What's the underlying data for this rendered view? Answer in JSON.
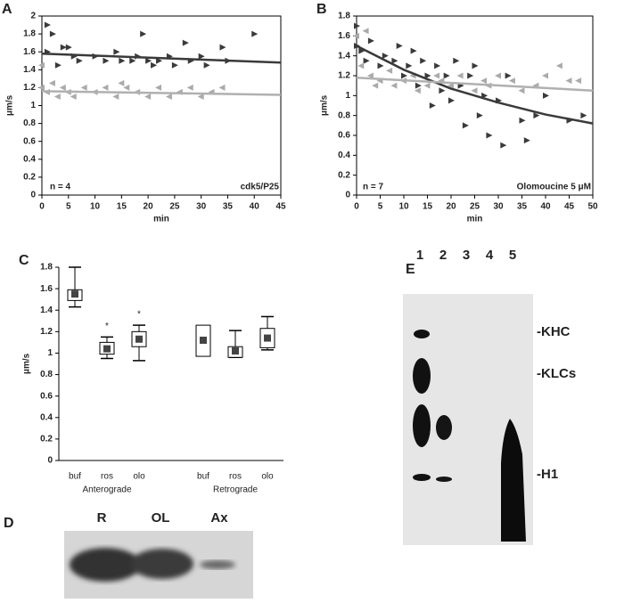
{
  "chart_data": [
    {
      "type": "scatter",
      "label": "A",
      "xlabel": "min",
      "ylabel": "μm/s",
      "annotations": [
        "n = 4",
        "cdk5/P25"
      ],
      "xlim": [
        0,
        45
      ],
      "xticks": [
        0,
        5,
        10,
        15,
        20,
        25,
        30,
        35,
        40,
        45
      ],
      "ylim": [
        0,
        2
      ],
      "yticks": [
        0,
        0.2,
        0.4,
        0.6,
        0.8,
        1,
        1.2,
        1.4,
        1.6,
        1.8,
        2
      ],
      "series": [
        {
          "color": "#3a3a3a",
          "marker": "right",
          "x": [
            1,
            1,
            2,
            3,
            4,
            5,
            6,
            7,
            10,
            12,
            14,
            15,
            17,
            18,
            19,
            20,
            21,
            22,
            24,
            25,
            27,
            28,
            30,
            31,
            34,
            35,
            40
          ],
          "values": [
            1.9,
            1.6,
            1.8,
            1.45,
            1.65,
            1.65,
            1.55,
            1.5,
            1.55,
            1.5,
            1.6,
            1.5,
            1.5,
            1.55,
            1.8,
            1.5,
            1.45,
            1.5,
            1.55,
            1.45,
            1.7,
            1.5,
            1.55,
            1.45,
            1.65,
            1.5,
            1.8
          ]
        },
        {
          "color": "#aaaaaa",
          "marker": "left",
          "x": [
            0,
            0,
            1,
            2,
            3,
            4,
            5,
            6,
            8,
            10,
            12,
            14,
            15,
            16,
            18,
            20,
            22,
            24,
            26,
            28,
            30,
            32,
            34
          ],
          "values": [
            1.45,
            1.2,
            1.15,
            1.25,
            1.1,
            1.2,
            1.15,
            1.1,
            1.2,
            1.15,
            1.2,
            1.1,
            1.25,
            1.2,
            1.15,
            1.1,
            1.2,
            1.1,
            1.15,
            1.2,
            1.1,
            1.15,
            1.2
          ]
        }
      ],
      "fits": [
        {
          "color": "#3a3a3a",
          "x": [
            0,
            45
          ],
          "values": [
            1.58,
            1.48
          ]
        },
        {
          "color": "#b0b0b0",
          "x": [
            0,
            45
          ],
          "values": [
            1.16,
            1.12
          ]
        }
      ]
    },
    {
      "type": "scatter",
      "label": "B",
      "xlabel": "min",
      "ylabel": "μm/s",
      "annotations": [
        "n = 7",
        "Olomoucine 5 μM"
      ],
      "xlim": [
        0,
        50
      ],
      "xticks": [
        0,
        5,
        10,
        15,
        20,
        25,
        30,
        35,
        40,
        45,
        50
      ],
      "ylim": [
        0,
        1.8
      ],
      "yticks": [
        0,
        0.2,
        0.4,
        0.6,
        0.8,
        1,
        1.2,
        1.4,
        1.6,
        1.8
      ],
      "series": [
        {
          "color": "#3a3a3a",
          "marker": "right",
          "x": [
            0,
            0,
            1,
            2,
            3,
            5,
            6,
            8,
            9,
            10,
            11,
            12,
            13,
            14,
            15,
            16,
            17,
            18,
            19,
            20,
            21,
            22,
            23,
            24,
            25,
            26,
            27,
            28,
            30,
            31,
            32,
            35,
            36,
            38,
            40,
            45,
            48
          ],
          "values": [
            1.7,
            1.5,
            1.45,
            1.35,
            1.55,
            1.3,
            1.4,
            1.35,
            1.5,
            1.2,
            1.3,
            1.45,
            1.1,
            1.35,
            1.2,
            0.9,
            1.3,
            1.05,
            1.2,
            0.95,
            1.35,
            1.1,
            0.7,
            1.2,
            1.3,
            0.8,
            1,
            0.6,
            0.95,
            0.5,
            1.2,
            0.75,
            0.55,
            0.8,
            1,
            0.75,
            0.8
          ]
        },
        {
          "color": "#aaaaaa",
          "marker": "left",
          "x": [
            0,
            1,
            2,
            3,
            4,
            5,
            7,
            8,
            10,
            12,
            13,
            15,
            17,
            18,
            20,
            22,
            25,
            27,
            28,
            30,
            33,
            35,
            38,
            40,
            43,
            45,
            47
          ],
          "values": [
            1.6,
            1.3,
            1.65,
            1.2,
            1.1,
            1.15,
            1.25,
            1.1,
            1.15,
            1.2,
            1.05,
            1.1,
            1.2,
            1.15,
            1.1,
            1.2,
            1.05,
            1.15,
            1.1,
            1.2,
            1.15,
            1.05,
            1.1,
            1.2,
            1.3,
            1.15,
            1.15
          ]
        }
      ],
      "fits": [
        {
          "color": "#3a3a3a",
          "x": [
            0,
            10,
            20,
            30,
            40,
            50
          ],
          "values": [
            1.5,
            1.26,
            1.07,
            0.93,
            0.81,
            0.72
          ]
        },
        {
          "color": "#b0b0b0",
          "x": [
            0,
            50
          ],
          "values": [
            1.18,
            1.05
          ]
        }
      ]
    },
    {
      "type": "box",
      "label": "C",
      "ylabel": "μm/s",
      "ylim": [
        0,
        1.8
      ],
      "yticks": [
        0,
        0.2,
        0.4,
        0.6,
        0.8,
        1,
        1.2,
        1.4,
        1.6,
        1.8
      ],
      "categories": [
        "buf",
        "ros",
        "olo",
        null,
        "buf",
        "ros",
        "olo"
      ],
      "groups": [
        "Anterograde",
        "Retrograde"
      ],
      "min": [
        1.43,
        0.95,
        0.93,
        null,
        null,
        0.96,
        1.03
      ],
      "q1": [
        1.49,
        0.99,
        1.06,
        null,
        0.97,
        0.96,
        1.05
      ],
      "mean": [
        1.55,
        1.04,
        1.13,
        null,
        1.12,
        1.02,
        1.14
      ],
      "q3": [
        1.59,
        1.1,
        1.2,
        null,
        1.26,
        1.06,
        1.23
      ],
      "max": [
        1.8,
        1.15,
        1.26,
        null,
        null,
        1.21,
        1.34
      ],
      "markers": [
        null,
        "*",
        "*",
        null,
        null,
        null,
        null
      ]
    }
  ],
  "panel_d": {
    "label": "D",
    "lanes": [
      "R",
      "OL",
      "Ax"
    ]
  },
  "panel_e": {
    "label": "E",
    "lanes": [
      "1",
      "2",
      "3",
      "4",
      "5"
    ],
    "bands": [
      "-KHC",
      "-KLCs",
      "-H1"
    ]
  }
}
